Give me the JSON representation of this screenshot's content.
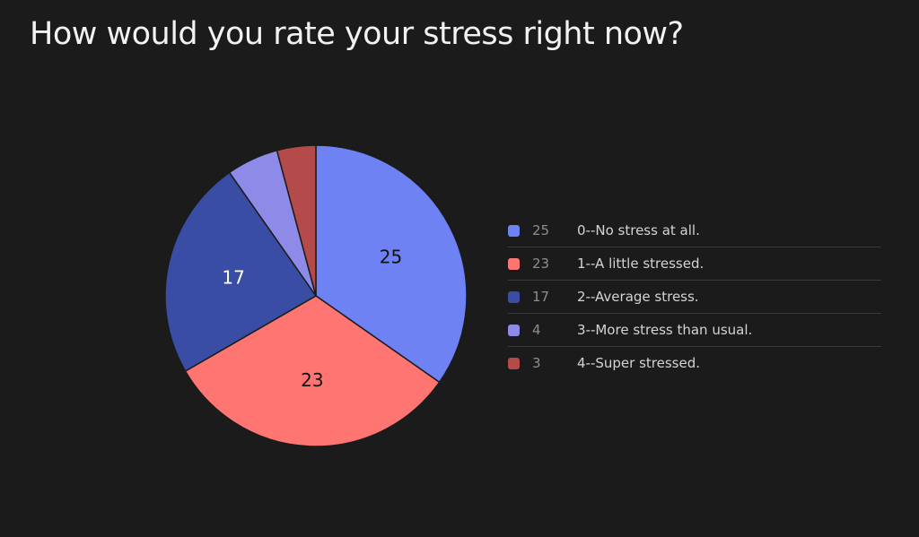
{
  "title": "How would you rate your stress right now?",
  "chart_data": {
    "type": "pie",
    "title": "How would you rate your stress right now?",
    "categories": [
      "0--No stress at all.",
      "1--A little stressed.",
      "2--Average stress.",
      "3--More stress than usual.",
      "4--Super stressed."
    ],
    "values": [
      25,
      23,
      17,
      4,
      3
    ],
    "colors": [
      "#6e82f3",
      "#fe7571",
      "#384da3",
      "#8e8ae8",
      "#b44a49"
    ],
    "data_labels": [
      "25",
      "23",
      "17",
      "",
      ""
    ],
    "label_colors": [
      "#111111",
      "#111111",
      "#ffffff",
      "",
      ""
    ],
    "start_angle_deg": 0,
    "direction": "clockwise",
    "legend_position": "right"
  },
  "legend": {
    "items": [
      {
        "count": "25",
        "label": "0--No stress at all.",
        "color": "#6e82f3"
      },
      {
        "count": "23",
        "label": "1--A little stressed.",
        "color": "#fe7571"
      },
      {
        "count": "17",
        "label": "2--Average stress.",
        "color": "#384da3"
      },
      {
        "count": "4",
        "label": "3--More stress than usual.",
        "color": "#8e8ae8"
      },
      {
        "count": "3",
        "label": "4--Super stressed.",
        "color": "#b44a49"
      }
    ]
  }
}
